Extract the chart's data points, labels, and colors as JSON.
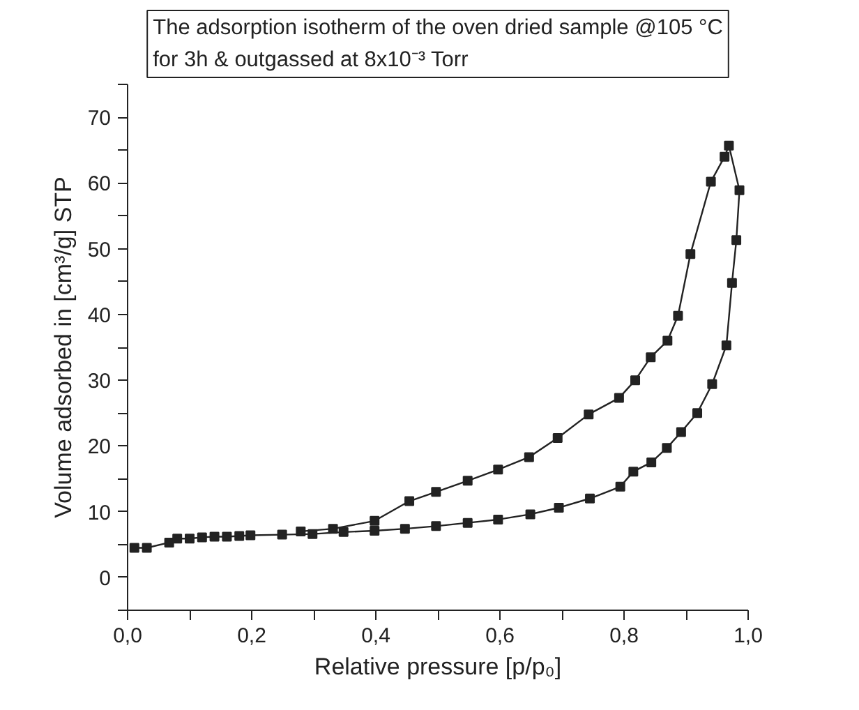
{
  "chart_data": {
    "type": "line",
    "title": "The adsorption isotherm of the oven dried sample @105 °C\nfor 3h & outgassed at 8x10⁻³ Torr",
    "xlabel": "Relative pressure [p/p₀]",
    "ylabel": "Volume adsorbed in [cm³/g] STP",
    "x": [
      0.011,
      0.031,
      0.067,
      0.08,
      0.1,
      0.12,
      0.14,
      0.16,
      0.18,
      0.198,
      0.249,
      0.298,
      0.348,
      0.398,
      0.447,
      0.497,
      0.548,
      0.597,
      0.649,
      0.695,
      0.745,
      0.794,
      0.815,
      0.844,
      0.869,
      0.892,
      0.918,
      0.942,
      0.965,
      0.974,
      0.981,
      0.986,
      0.969,
      0.962,
      0.94,
      0.907,
      0.887,
      0.87,
      0.843,
      0.818,
      0.792,
      0.743,
      0.693,
      0.647,
      0.597,
      0.548,
      0.497,
      0.454,
      0.398,
      0.331,
      0.279
    ],
    "series": [
      {
        "color": "#222222",
        "values": [
          4.5,
          4.5,
          5.3,
          5.9,
          5.9,
          6.1,
          6.2,
          6.2,
          6.3,
          6.4,
          6.5,
          6.6,
          6.9,
          7.1,
          7.4,
          7.8,
          8.3,
          8.8,
          9.6,
          10.6,
          12.0,
          13.8,
          16.1,
          17.5,
          19.7,
          22.1,
          25.0,
          29.4,
          35.3,
          44.8,
          51.3,
          58.9,
          65.7,
          64.0,
          60.2,
          49.2,
          39.8,
          36.0,
          33.5,
          30.0,
          27.3,
          24.8,
          21.2,
          18.3,
          16.4,
          14.7,
          13.0,
          11.6,
          8.6,
          7.4,
          7.0
        ]
      }
    ],
    "xlim": [
      0,
      1.0
    ],
    "ylim": [
      -5,
      75
    ],
    "xticks": [
      {
        "value": 0,
        "label": "0,0"
      },
      {
        "value": 0.1,
        "label": null
      },
      {
        "value": 0.2,
        "label": "0,2"
      },
      {
        "value": 0.3,
        "label": null
      },
      {
        "value": 0.4,
        "label": "0,4"
      },
      {
        "value": 0.5,
        "label": null
      },
      {
        "value": 0.6,
        "label": "0,6"
      },
      {
        "value": 0.7,
        "label": null
      },
      {
        "value": 0.8,
        "label": "0,8"
      },
      {
        "value": 0.9,
        "label": null
      },
      {
        "value": 1.0,
        "label": "1,0"
      }
    ],
    "yticks": [
      {
        "value": -5,
        "label": null
      },
      0,
      {
        "value": 5,
        "label": null
      },
      10,
      {
        "value": 15,
        "label": null
      },
      20,
      {
        "value": 25,
        "label": null
      },
      30,
      {
        "value": 35,
        "label": null
      },
      40,
      {
        "value": 45,
        "label": null
      },
      50,
      {
        "value": 55,
        "label": null
      },
      60,
      {
        "value": 65,
        "label": null
      },
      70,
      {
        "value": 75,
        "label": null
      }
    ],
    "grid": false,
    "marker": "square",
    "line_style": "solid"
  }
}
